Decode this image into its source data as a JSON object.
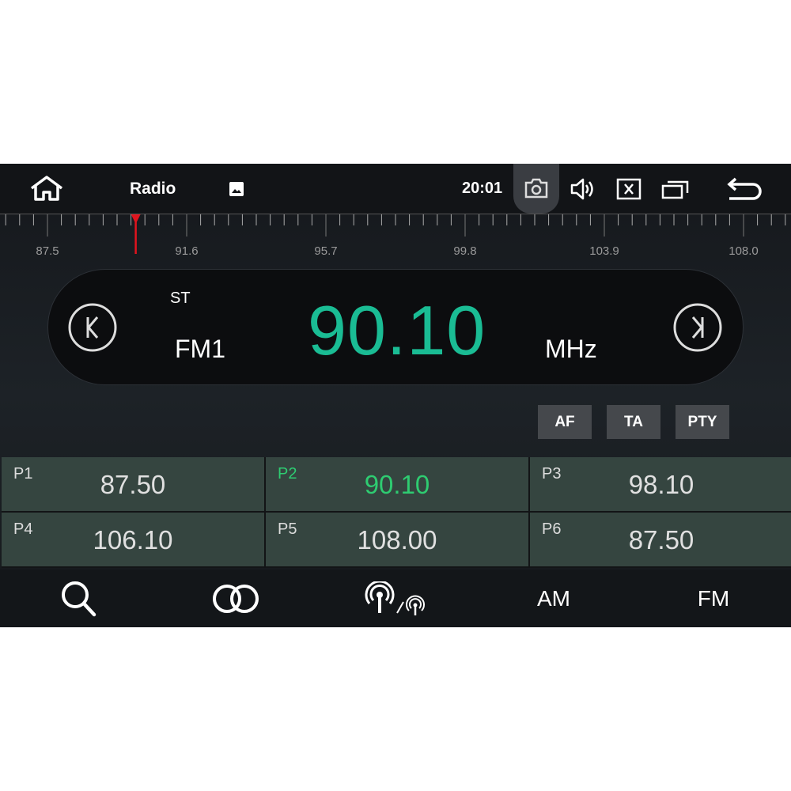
{
  "topbar": {
    "title": "Radio",
    "clock": "20:01"
  },
  "icons": {
    "home": "home-icon",
    "gallery": "image-icon",
    "screenshot": "camera-icon",
    "volume": "volume-icon",
    "close": "close-box-icon",
    "windows": "recent-apps-icon",
    "back": "back-icon"
  },
  "ruler": {
    "labels": [
      "87.5",
      "91.6",
      "95.7",
      "99.8",
      "103.9",
      "108.0"
    ],
    "min": 87.5,
    "max": 108.0,
    "current": 90.1,
    "marker_color": "#e0141e"
  },
  "display": {
    "stereo": "ST",
    "band": "FM1",
    "frequency": "90.10",
    "unit": "MHz",
    "accent": "#1abc94"
  },
  "rds_buttons": [
    "AF",
    "TA",
    "PTY"
  ],
  "presets": [
    {
      "label": "P1",
      "value": "87.50",
      "active": false
    },
    {
      "label": "P2",
      "value": "90.10",
      "active": true
    },
    {
      "label": "P3",
      "value": "98.10",
      "active": false
    },
    {
      "label": "P4",
      "value": "106.10",
      "active": false
    },
    {
      "label": "P5",
      "value": "108.00",
      "active": false
    },
    {
      "label": "P6",
      "value": "87.50",
      "active": false
    }
  ],
  "bottombar": {
    "am_label": "AM",
    "fm_label": "FM"
  }
}
